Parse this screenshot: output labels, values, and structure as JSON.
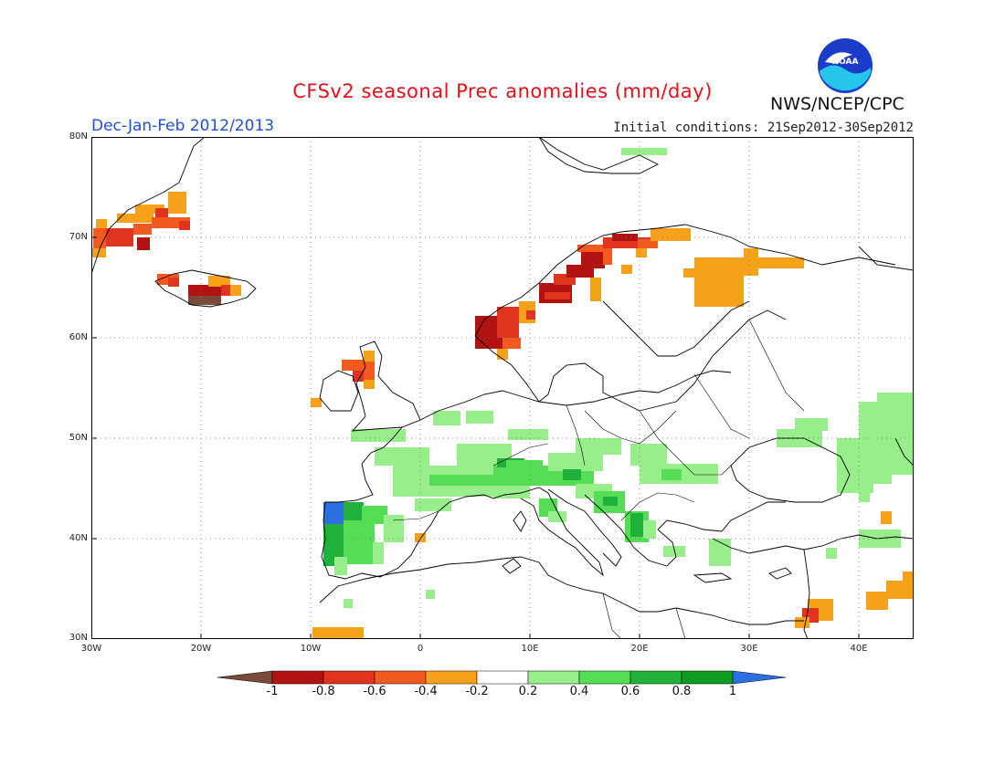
{
  "header": {
    "title": "CFSv2 seasonal Prec anomalies (mm/day)",
    "season": "Dec-Jan-Feb 2012/2013",
    "initial_conditions": "Initial conditions: 21Sep2012-30Sep2012",
    "agency": "NWS/NCEP/CPC",
    "logo_text": "NOAA"
  },
  "map": {
    "region": "Europe",
    "lon_range": [
      -30,
      45
    ],
    "lat_range": [
      30,
      80
    ],
    "lat_labels": [
      "80N",
      "70N",
      "60N",
      "50N",
      "40N",
      "30N"
    ],
    "lon_labels": [
      "30W",
      "20W",
      "10W",
      "0",
      "10E",
      "20E",
      "30E",
      "40E"
    ],
    "grid": "dotted"
  },
  "legend": {
    "ticks": [
      "-1",
      "-0.8",
      "-0.6",
      "-0.4",
      "-0.2",
      "0.2",
      "0.4",
      "0.6",
      "0.8",
      "1"
    ],
    "colors": [
      "#7a4a3a",
      "#b31212",
      "#e0341f",
      "#f35a1f",
      "#f5a21a",
      "#ffffff",
      "#98ee8a",
      "#55dd55",
      "#1fb13a",
      "#0f9b22",
      "#2c6fe0"
    ]
  }
}
